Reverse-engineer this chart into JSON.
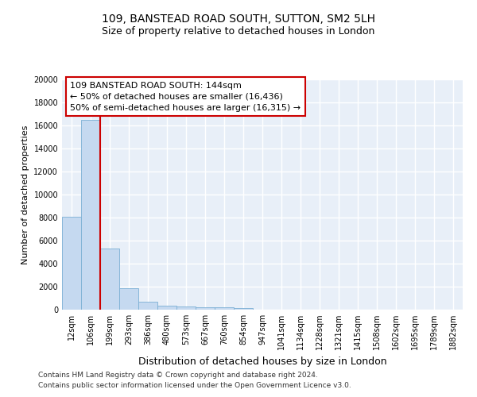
{
  "title1": "109, BANSTEAD ROAD SOUTH, SUTTON, SM2 5LH",
  "title2": "Size of property relative to detached houses in London",
  "xlabel": "Distribution of detached houses by size in London",
  "ylabel": "Number of detached properties",
  "categories": [
    "12sqm",
    "106sqm",
    "199sqm",
    "293sqm",
    "386sqm",
    "480sqm",
    "573sqm",
    "667sqm",
    "760sqm",
    "854sqm",
    "947sqm",
    "1041sqm",
    "1134sqm",
    "1228sqm",
    "1321sqm",
    "1415sqm",
    "1508sqm",
    "1602sqm",
    "1695sqm",
    "1789sqm",
    "1882sqm"
  ],
  "bar_values": [
    8100,
    16500,
    5300,
    1850,
    700,
    350,
    270,
    220,
    190,
    150,
    0,
    0,
    0,
    0,
    0,
    0,
    0,
    0,
    0,
    0,
    0
  ],
  "bar_color": "#c5d9f0",
  "bar_edge_color": "#7bafd4",
  "vline_x": 1.5,
  "vline_color": "#cc0000",
  "ylim": [
    0,
    20000
  ],
  "yticks": [
    0,
    2000,
    4000,
    6000,
    8000,
    10000,
    12000,
    14000,
    16000,
    18000,
    20000
  ],
  "annotation_text": "109 BANSTEAD ROAD SOUTH: 144sqm\n← 50% of detached houses are smaller (16,436)\n50% of semi-detached houses are larger (16,315) →",
  "annotation_box_color": "#ffffff",
  "annotation_box_edge": "#cc0000",
  "footer1": "Contains HM Land Registry data © Crown copyright and database right 2024.",
  "footer2": "Contains public sector information licensed under the Open Government Licence v3.0.",
  "bg_color": "#e8eff8",
  "grid_color": "#ffffff",
  "title1_fontsize": 10,
  "title2_fontsize": 9,
  "ylabel_fontsize": 8,
  "xlabel_fontsize": 9,
  "tick_fontsize": 7,
  "footer_fontsize": 6.5,
  "ann_fontsize": 8
}
